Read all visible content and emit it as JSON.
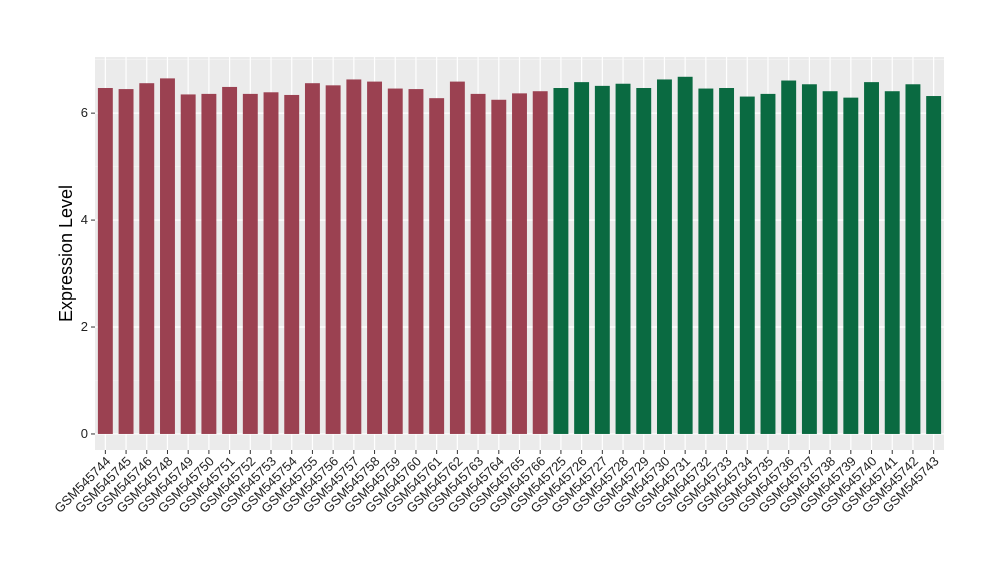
{
  "chart_data": {
    "type": "bar",
    "title": "",
    "xlabel": "",
    "ylabel": "Expression Level",
    "ylim": [
      -0.3,
      7.05
    ],
    "yticks": [
      0,
      2,
      4,
      6
    ],
    "grid": true,
    "background": "#ebebeb",
    "categories": [
      "GSM545744",
      "GSM545745",
      "GSM545746",
      "GSM545748",
      "GSM545749",
      "GSM545750",
      "GSM545751",
      "GSM545752",
      "GSM545753",
      "GSM545754",
      "GSM545755",
      "GSM545756",
      "GSM545757",
      "GSM545758",
      "GSM545759",
      "GSM545760",
      "GSM545761",
      "GSM545762",
      "GSM545763",
      "GSM545764",
      "GSM545765",
      "GSM545766",
      "GSM545725",
      "GSM545726",
      "GSM545727",
      "GSM545728",
      "GSM545729",
      "GSM545730",
      "GSM545731",
      "GSM545732",
      "GSM545733",
      "GSM545734",
      "GSM545735",
      "GSM545736",
      "GSM545737",
      "GSM545738",
      "GSM545739",
      "GSM545740",
      "GSM545741",
      "GSM545742",
      "GSM545743"
    ],
    "values": [
      6.47,
      6.45,
      6.56,
      6.65,
      6.35,
      6.36,
      6.49,
      6.36,
      6.39,
      6.34,
      6.56,
      6.52,
      6.63,
      6.59,
      6.46,
      6.45,
      6.28,
      6.59,
      6.36,
      6.25,
      6.37,
      6.41,
      6.47,
      6.58,
      6.51,
      6.55,
      6.47,
      6.63,
      6.68,
      6.46,
      6.47,
      6.31,
      6.36,
      6.61,
      6.54,
      6.41,
      6.29,
      6.58,
      6.41,
      6.54,
      6.32
    ],
    "groups": [
      {
        "color": "#9b4151",
        "count": 22
      },
      {
        "color": "#0a6a41",
        "count": 19
      }
    ]
  }
}
